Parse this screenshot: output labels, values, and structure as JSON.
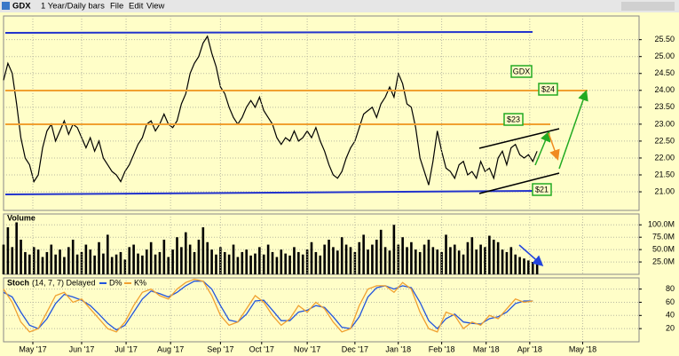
{
  "header": {
    "symbol": "GDX",
    "period": "1 Year/Daily bars",
    "menus": [
      "File",
      "Edit",
      "View"
    ]
  },
  "chart_data": [
    {
      "type": "line",
      "x": [
        0,
        2,
        4,
        6,
        8,
        10,
        12,
        14,
        16,
        18,
        20,
        22,
        24,
        26,
        28,
        30,
        32,
        34,
        36,
        38,
        40,
        42,
        44,
        46,
        48,
        50,
        52,
        54,
        56,
        58,
        60,
        62,
        64,
        66,
        68,
        70,
        72,
        74,
        76,
        78,
        80,
        82,
        84,
        86,
        88,
        90,
        92,
        94,
        96,
        98,
        100,
        102,
        104,
        106,
        108,
        110,
        112,
        114,
        116,
        118,
        120,
        122,
        124,
        126,
        128,
        130,
        132,
        134,
        136,
        138,
        140,
        142,
        144,
        146,
        148,
        150,
        152,
        154,
        156,
        158,
        160,
        162,
        164,
        166,
        168,
        170,
        172,
        174,
        176,
        178,
        180,
        182,
        184,
        186,
        188,
        190,
        192,
        194,
        196,
        198,
        200,
        202,
        204,
        206,
        208,
        210,
        212,
        214,
        216,
        218,
        220,
        222,
        224,
        226,
        228,
        230,
        232,
        234,
        236,
        238,
        240,
        242,
        244,
        246
      ],
      "values": [
        24.3,
        24.8,
        24.5,
        23.6,
        22.6,
        22.0,
        21.8,
        21.3,
        21.5,
        22.3,
        22.8,
        23.0,
        22.5,
        22.8,
        23.1,
        22.7,
        23.0,
        22.9,
        22.6,
        22.3,
        22.6,
        22.2,
        22.5,
        22.0,
        21.8,
        21.6,
        21.5,
        21.3,
        21.6,
        21.8,
        22.1,
        22.4,
        22.6,
        23.0,
        23.1,
        22.8,
        23.0,
        23.3,
        23.0,
        22.9,
        23.1,
        23.6,
        23.9,
        24.5,
        24.8,
        25.0,
        25.4,
        25.6,
        25.1,
        24.7,
        24.1,
        23.9,
        23.5,
        23.2,
        23.0,
        23.2,
        23.5,
        23.7,
        23.5,
        23.8,
        23.4,
        23.2,
        23.0,
        22.6,
        22.4,
        22.6,
        22.5,
        22.8,
        22.5,
        22.6,
        22.8,
        22.6,
        22.9,
        22.5,
        22.2,
        21.8,
        21.5,
        21.4,
        21.6,
        22.0,
        22.3,
        22.5,
        22.9,
        23.3,
        23.4,
        23.5,
        23.2,
        23.6,
        23.8,
        24.1,
        23.8,
        24.5,
        24.2,
        23.6,
        23.5,
        22.9,
        22.0,
        21.6,
        21.2,
        21.9,
        22.8,
        22.2,
        21.7,
        21.6,
        21.4,
        21.8,
        21.9,
        21.5,
        21.6,
        21.4,
        21.9,
        21.6,
        21.7,
        21.4,
        22.0,
        22.2,
        21.8,
        22.3,
        22.4,
        22.1,
        22.0,
        22.1,
        21.9,
        22.2
      ],
      "color": "#000000",
      "annotations": [
        "GDX",
        "$24",
        "$23",
        "$21"
      ],
      "xlim": [
        0,
        293
      ],
      "ylim": [
        20.45,
        26.2
      ],
      "yticks": [
        {
          "value": 21,
          "label": "21.00"
        },
        {
          "value": 21.5,
          "label": "21.50"
        },
        {
          "value": 22,
          "label": "22.00"
        },
        {
          "value": 22.5,
          "label": "22.50"
        },
        {
          "value": 23,
          "label": "23.00"
        },
        {
          "value": 23.5,
          "label": "23.50"
        },
        {
          "value": 24,
          "label": "24.00"
        },
        {
          "value": 24.5,
          "label": "24.50"
        },
        {
          "value": 25,
          "label": "25.00"
        },
        {
          "value": 25.5,
          "label": "25.50"
        }
      ],
      "grid": true
    },
    {
      "type": "bar",
      "title": "Volume",
      "x": [
        0,
        2,
        4,
        6,
        8,
        10,
        12,
        14,
        16,
        18,
        20,
        22,
        24,
        26,
        28,
        30,
        32,
        34,
        36,
        38,
        40,
        42,
        44,
        46,
        48,
        50,
        52,
        54,
        56,
        58,
        60,
        62,
        64,
        66,
        68,
        70,
        72,
        74,
        76,
        78,
        80,
        82,
        84,
        86,
        88,
        90,
        92,
        94,
        96,
        98,
        100,
        102,
        104,
        106,
        108,
        110,
        112,
        114,
        116,
        118,
        120,
        122,
        124,
        126,
        128,
        130,
        132,
        134,
        136,
        138,
        140,
        142,
        144,
        146,
        148,
        150,
        152,
        154,
        156,
        158,
        160,
        162,
        164,
        166,
        168,
        170,
        172,
        174,
        176,
        178,
        180,
        182,
        184,
        186,
        188,
        190,
        192,
        194,
        196,
        198,
        200,
        202,
        204,
        206,
        208,
        210,
        212,
        214,
        216,
        218,
        220,
        222,
        224,
        226,
        228,
        230,
        232,
        234,
        236,
        238,
        240,
        242,
        244,
        246
      ],
      "values": [
        60,
        95,
        55,
        105,
        70,
        45,
        40,
        55,
        50,
        35,
        45,
        60,
        40,
        50,
        35,
        55,
        70,
        40,
        45,
        60,
        50,
        38,
        65,
        42,
        80,
        35,
        40,
        45,
        30,
        55,
        60,
        42,
        38,
        50,
        65,
        40,
        45,
        70,
        35,
        50,
        75,
        55,
        85,
        60,
        45,
        70,
        95,
        65,
        50,
        40,
        55,
        45,
        40,
        60,
        35,
        45,
        50,
        38,
        42,
        55,
        40,
        60,
        45,
        35,
        50,
        42,
        38,
        55,
        45,
        40,
        50,
        65,
        45,
        38,
        60,
        70,
        55,
        48,
        75,
        60,
        55,
        45,
        65,
        80,
        50,
        60,
        70,
        90,
        55,
        48,
        100,
        60,
        75,
        55,
        65,
        50,
        45,
        60,
        70,
        55,
        50,
        45,
        80,
        55,
        60,
        48,
        40,
        65,
        75,
        50,
        60,
        55,
        78,
        70,
        65,
        50,
        45,
        55,
        40,
        35,
        32,
        28,
        25,
        22
      ],
      "color": "#000000",
      "xlim": [
        0,
        293
      ],
      "ylim": [
        0,
        122
      ],
      "yticks": [
        {
          "value": 25,
          "label": "25.0M"
        },
        {
          "value": 50,
          "label": "50.0M"
        },
        {
          "value": 75,
          "label": "75.0M"
        },
        {
          "value": 100,
          "label": "100.0M"
        }
      ],
      "grid": true
    },
    {
      "type": "line",
      "title": "Stoch",
      "subtitle": "(14, 7, 7) Delayed",
      "x": [
        0,
        4,
        8,
        12,
        16,
        20,
        24,
        28,
        32,
        36,
        40,
        44,
        48,
        52,
        56,
        60,
        64,
        68,
        72,
        76,
        80,
        84,
        88,
        92,
        96,
        100,
        104,
        108,
        112,
        116,
        120,
        124,
        128,
        132,
        136,
        140,
        144,
        148,
        152,
        156,
        160,
        164,
        168,
        172,
        176,
        180,
        184,
        188,
        192,
        196,
        200,
        204,
        208,
        212,
        216,
        220,
        224,
        228,
        232,
        236,
        240,
        244
      ],
      "series": [
        {
          "name": "D%",
          "color": "#2255dd",
          "values": [
            75,
            68,
            45,
            25,
            20,
            35,
            58,
            72,
            68,
            63,
            55,
            42,
            28,
            18,
            25,
            45,
            65,
            77,
            73,
            68,
            75,
            85,
            92,
            92,
            80,
            55,
            33,
            30,
            42,
            62,
            63,
            48,
            32,
            32,
            45,
            48,
            55,
            52,
            38,
            22,
            20,
            38,
            68,
            82,
            85,
            80,
            85,
            82,
            60,
            32,
            20,
            35,
            42,
            30,
            28,
            27,
            35,
            38,
            45,
            58,
            62,
            62
          ]
        },
        {
          "name": "K%",
          "color": "#f0a030",
          "values": [
            80,
            60,
            30,
            15,
            20,
            45,
            70,
            75,
            60,
            65,
            50,
            35,
            20,
            15,
            30,
            55,
            75,
            80,
            70,
            65,
            80,
            90,
            95,
            92,
            70,
            40,
            25,
            30,
            50,
            70,
            60,
            40,
            25,
            35,
            55,
            45,
            60,
            50,
            30,
            15,
            20,
            55,
            80,
            85,
            85,
            75,
            90,
            80,
            45,
            20,
            15,
            45,
            40,
            20,
            30,
            25,
            40,
            35,
            50,
            65,
            60,
            62
          ]
        }
      ],
      "xlim": [
        0,
        293
      ],
      "ylim": [
        0,
        97
      ],
      "yticks": [
        20,
        40,
        60,
        80
      ],
      "xticks": [
        {
          "value": 13.5,
          "label": "May '17"
        },
        {
          "value": 36,
          "label": "Jun '17"
        },
        {
          "value": 56.5,
          "label": "Jul '17"
        },
        {
          "value": 77,
          "label": "Aug '17"
        },
        {
          "value": 100,
          "label": "Sep '17"
        },
        {
          "value": 119,
          "label": "Oct '17"
        },
        {
          "value": 140,
          "label": "Nov '17"
        },
        {
          "value": 162,
          "label": "Dec '17"
        },
        {
          "value": 182,
          "label": "Jan '18"
        },
        {
          "value": 202,
          "label": "Feb '18"
        },
        {
          "value": 222.5,
          "label": "Mar '18"
        },
        {
          "value": 242.6,
          "label": "Apr '18"
        },
        {
          "value": 267,
          "label": "May '18"
        }
      ],
      "grid": true
    }
  ]
}
